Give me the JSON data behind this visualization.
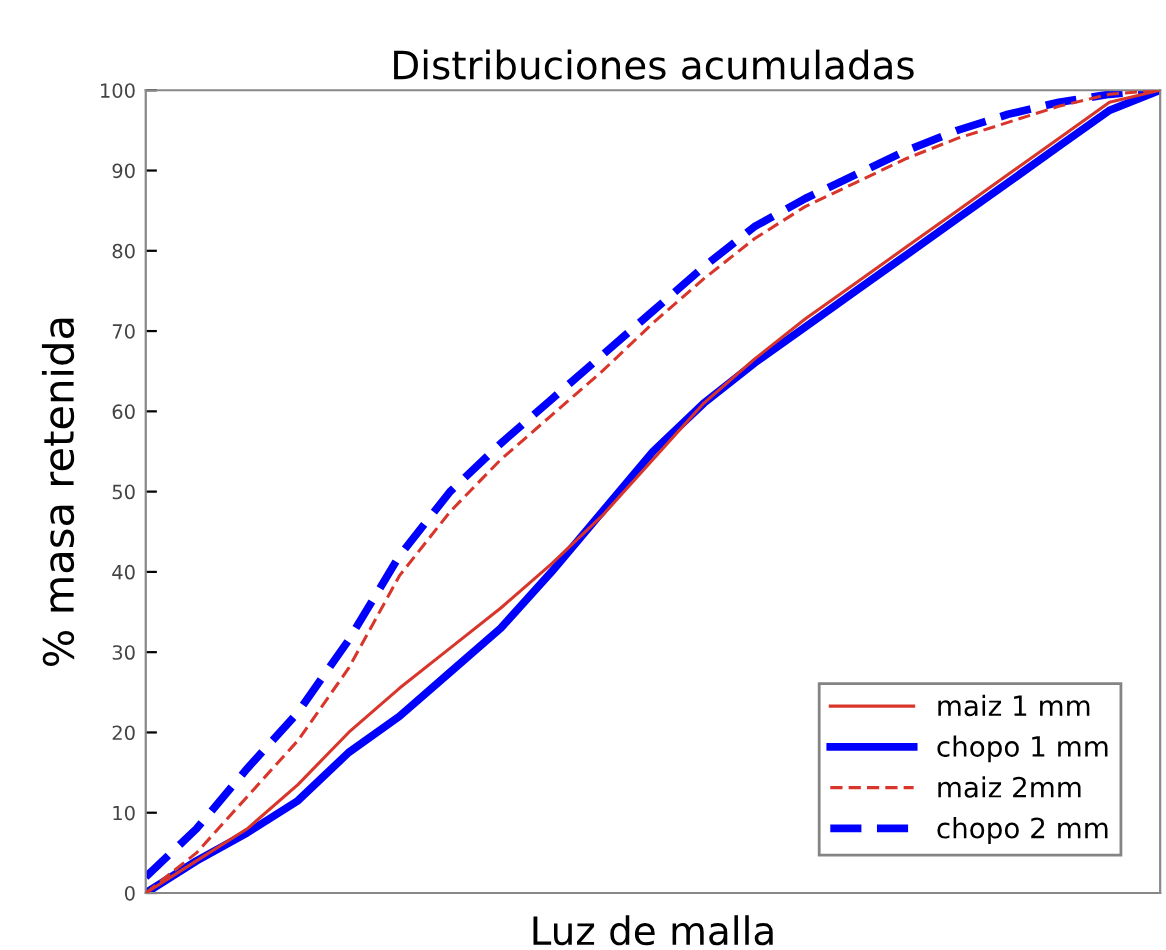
{
  "chart_data": {
    "type": "line",
    "title": "Distribuciones acumuladas",
    "xlabel": "Luz de malla",
    "ylabel": "% masa retenida",
    "categories": [
      null,
      null,
      null,
      null,
      null,
      null,
      null,
      null,
      null,
      null,
      null,
      null,
      null,
      null,
      null,
      null,
      null,
      null,
      null,
      null,
      null
    ],
    "series": [
      {
        "name": "maiz 1 mm",
        "color": "#d9362b",
        "line_style": "solid",
        "values": [
          0,
          4,
          8,
          13.5,
          20,
          25.5,
          30.5,
          35.5,
          41,
          47,
          54,
          61,
          66.5,
          71.5,
          76,
          80.5,
          85,
          89.5,
          94,
          98.5,
          100
        ]
      },
      {
        "name": "chopo 1 mm",
        "color": "#0000ff",
        "line_style": "solid",
        "values": [
          0,
          4,
          7.5,
          11.5,
          17.5,
          22,
          27.5,
          33,
          40,
          47.5,
          55,
          61,
          66,
          70.5,
          75,
          79.5,
          84,
          88.5,
          93,
          97.5,
          100
        ]
      },
      {
        "name": "maiz 2mm",
        "color": "#d9362b",
        "line_style": "dashed",
        "values": [
          0,
          5,
          12,
          19,
          28,
          39.5,
          47.5,
          54,
          59.5,
          65,
          71,
          76.5,
          81.5,
          85.5,
          88.5,
          91.5,
          94,
          96,
          98,
          99.5,
          100
        ]
      },
      {
        "name": "chopo 2 mm",
        "color": "#0000ff",
        "line_style": "dashed",
        "values": [
          2,
          8,
          15.5,
          22.5,
          31.5,
          42,
          50,
          56,
          61.5,
          67,
          72.5,
          78,
          83,
          86.5,
          89.5,
          92.5,
          95,
          97,
          98.5,
          99.5,
          100
        ]
      }
    ],
    "ylim": [
      0,
      100
    ],
    "yticks": [
      0,
      10,
      20,
      30,
      40,
      50,
      60,
      70,
      80,
      90,
      100
    ],
    "legend": "lower right",
    "grid": false,
    "marker": "none",
    "tick_labels": "y"
  }
}
